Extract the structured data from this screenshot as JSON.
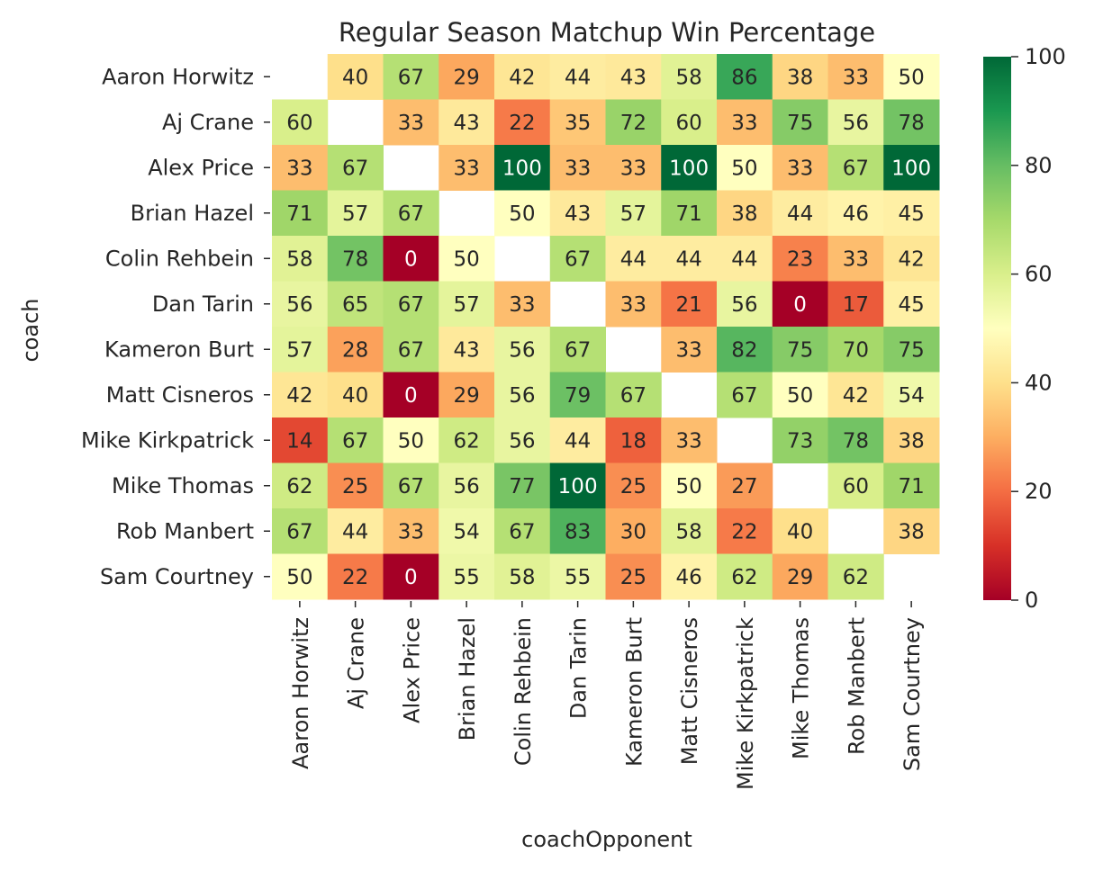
{
  "chart_data": {
    "type": "heatmap",
    "title": "Regular Season Matchup Win Percentage",
    "xlabel": "coachOpponent",
    "ylabel": "coach",
    "rows": [
      "Aaron Horwitz",
      "Aj Crane",
      "Alex Price",
      "Brian Hazel",
      "Colin Rehbein",
      "Dan Tarin",
      "Kameron Burt",
      "Matt Cisneros",
      "Mike Kirkpatrick",
      "Mike Thomas",
      "Rob Manbert",
      "Sam Courtney"
    ],
    "columns": [
      "Aaron Horwitz",
      "Aj Crane",
      "Alex Price",
      "Brian Hazel",
      "Colin Rehbein",
      "Dan Tarin",
      "Kameron Burt",
      "Matt Cisneros",
      "Mike Kirkpatrick",
      "Mike Thomas",
      "Rob Manbert",
      "Sam Courtney"
    ],
    "values": [
      [
        null,
        40,
        67,
        29,
        42,
        44,
        43,
        58,
        86,
        38,
        33,
        50
      ],
      [
        60,
        null,
        33,
        43,
        22,
        35,
        72,
        60,
        33,
        75,
        56,
        78
      ],
      [
        33,
        67,
        null,
        33,
        100,
        33,
        33,
        100,
        50,
        33,
        67,
        100
      ],
      [
        71,
        57,
        67,
        null,
        50,
        43,
        57,
        71,
        38,
        44,
        46,
        45
      ],
      [
        58,
        78,
        0,
        50,
        null,
        67,
        44,
        44,
        44,
        23,
        33,
        42
      ],
      [
        56,
        65,
        67,
        57,
        33,
        null,
        33,
        21,
        56,
        0,
        17,
        45
      ],
      [
        57,
        28,
        67,
        43,
        56,
        67,
        null,
        33,
        82,
        75,
        70,
        75
      ],
      [
        42,
        40,
        0,
        29,
        56,
        79,
        67,
        null,
        67,
        50,
        42,
        54
      ],
      [
        14,
        67,
        50,
        62,
        56,
        44,
        18,
        33,
        null,
        73,
        78,
        38
      ],
      [
        62,
        25,
        67,
        56,
        77,
        100,
        25,
        50,
        27,
        null,
        60,
        71
      ],
      [
        67,
        44,
        33,
        54,
        67,
        83,
        30,
        58,
        22,
        40,
        null,
        38
      ],
      [
        50,
        22,
        0,
        55,
        58,
        55,
        25,
        46,
        62,
        29,
        62,
        null
      ]
    ],
    "colormap": "RdYlGn",
    "vmin": 0,
    "vmax": 100,
    "colorbar_ticks": [
      "0",
      "20",
      "40",
      "60",
      "80",
      "100"
    ],
    "annotations": true,
    "legend": "colorbar-right"
  }
}
